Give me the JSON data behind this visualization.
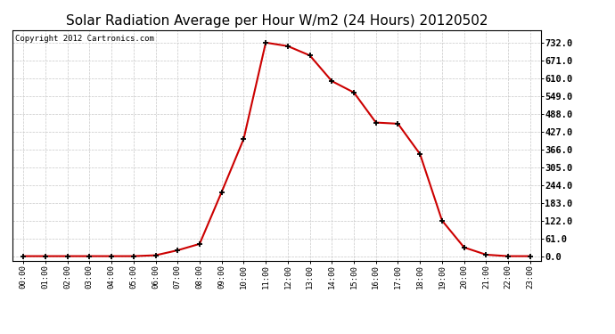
{
  "title": "Solar Radiation Average per Hour W/m2 (24 Hours) 20120502",
  "copyright": "Copyright 2012 Cartronics.com",
  "hours": [
    "00:00",
    "01:00",
    "02:00",
    "03:00",
    "04:00",
    "05:00",
    "06:00",
    "07:00",
    "08:00",
    "09:00",
    "10:00",
    "11:00",
    "12:00",
    "13:00",
    "14:00",
    "15:00",
    "16:00",
    "17:00",
    "18:00",
    "19:00",
    "20:00",
    "21:00",
    "22:00",
    "23:00"
  ],
  "values": [
    0.0,
    0.0,
    0.0,
    0.0,
    0.0,
    0.0,
    3.0,
    20.0,
    42.0,
    220.0,
    402.0,
    732.0,
    720.0,
    688.0,
    600.0,
    561.0,
    458.0,
    454.0,
    350.0,
    122.0,
    30.0,
    5.0,
    0.0,
    0.0
  ],
  "line_color": "#cc0000",
  "marker_color": "#000000",
  "bg_color": "#ffffff",
  "grid_color": "#c8c8c8",
  "title_fontsize": 11,
  "copyright_fontsize": 6.5,
  "ytick_values": [
    0.0,
    61.0,
    122.0,
    183.0,
    244.0,
    305.0,
    366.0,
    427.0,
    488.0,
    549.0,
    610.0,
    671.0,
    732.0
  ],
  "ylim": [
    -15,
    775
  ],
  "xlim": [
    -0.5,
    23.5
  ]
}
